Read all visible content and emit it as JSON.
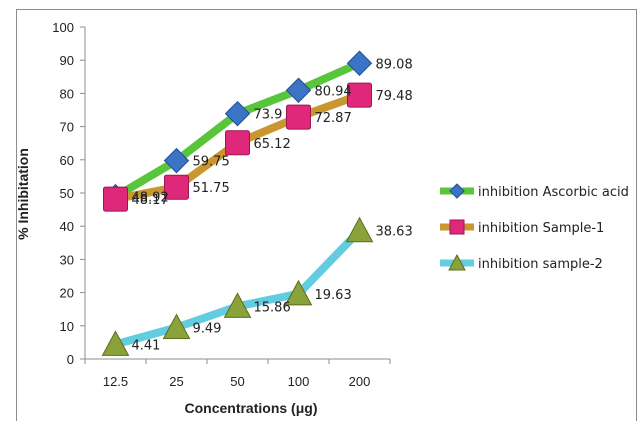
{
  "chart_data": {
    "type": "line",
    "title": "",
    "xlabel": "Concentrations (μg)",
    "ylabel": "% Inhibitation",
    "categories": [
      "12.5",
      "25",
      "50",
      "100",
      "200"
    ],
    "ylim": [
      0,
      100
    ],
    "yticks": [
      "0",
      "10",
      "20",
      "30",
      "40",
      "50",
      "60",
      "70",
      "80",
      "90",
      "100"
    ],
    "grid": false,
    "legend_position": "right",
    "series": [
      {
        "name": "inhibition Ascorbic acid",
        "values": [
          48.92,
          59.75,
          73.9,
          80.94,
          89.08
        ],
        "labels": [
          "48.92",
          "59.75",
          "73.9",
          "80.94",
          "89.08"
        ],
        "line_color": "#59c53a",
        "marker": "diamond",
        "marker_color": "#3b74c4"
      },
      {
        "name": "inhibition Sample-1",
        "values": [
          48.17,
          51.75,
          65.12,
          72.87,
          79.48
        ],
        "labels": [
          "48.17",
          "51.75",
          "65.12",
          "72.87",
          "79.48"
        ],
        "line_color": "#c9962f",
        "marker": "square",
        "marker_color": "#e0287a"
      },
      {
        "name": "inhibition sample-2",
        "values": [
          4.41,
          9.49,
          15.86,
          19.63,
          38.63
        ],
        "labels": [
          "4.41",
          "9.49",
          "15.86",
          "19.63",
          "38.63"
        ],
        "line_color": "#62cde0",
        "marker": "triangle",
        "marker_color": "#8aa23a"
      }
    ]
  }
}
